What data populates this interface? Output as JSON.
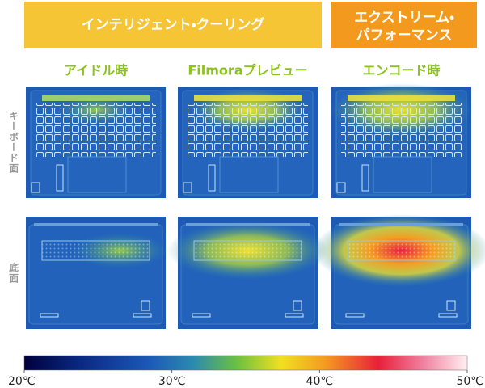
{
  "header": {
    "group_left": "インテリジェント・クーリング",
    "group_right": [
      "エクストリーム・",
      "パフォーマンス"
    ]
  },
  "columns": [
    "アイドル時",
    "Filmoraプレビュー",
    "エンコード時"
  ],
  "rows": [
    "キーボード面",
    "底面"
  ],
  "scale": {
    "min": 20,
    "max": 50,
    "ticks": [
      {
        "value": 20,
        "label": "20℃"
      },
      {
        "value": 30,
        "label": "30℃"
      },
      {
        "value": 40,
        "label": "40℃"
      },
      {
        "value": 50,
        "label": "50℃"
      }
    ]
  }
}
